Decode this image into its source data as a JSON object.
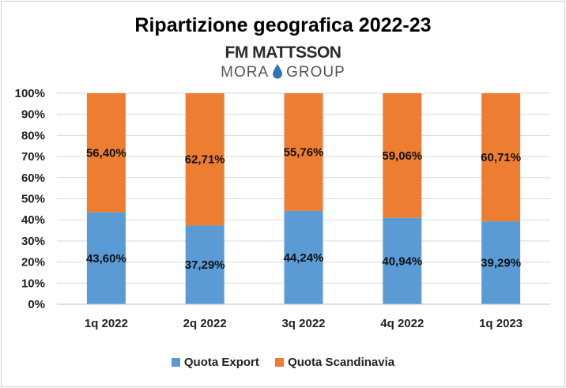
{
  "title": "Ripartizione geografica 2022-23",
  "logo": {
    "main": "FM MATTSSON",
    "sub_left": "MORA",
    "sub_right": "GROUP",
    "drop_icon": "water-drop-icon"
  },
  "colors": {
    "export": "#5b9bd5",
    "scandinavia": "#ed7d31",
    "grid": "#d9d9d9",
    "drop": "#2e75b6"
  },
  "chart_data": {
    "type": "bar",
    "stacked": true,
    "categories": [
      "1q 2022",
      "2q 2022",
      "3q 2022",
      "4q 2022",
      "1q 2023"
    ],
    "series": [
      {
        "name": "Quota Export",
        "values": [
          43.6,
          37.29,
          44.24,
          40.94,
          39.29
        ],
        "labels": [
          "43,60%",
          "37,29%",
          "44,24%",
          "40,94%",
          "39,29%"
        ]
      },
      {
        "name": "Quota Scandinavia",
        "values": [
          56.4,
          62.71,
          55.76,
          59.06,
          60.71
        ],
        "labels": [
          "56,40%",
          "62,71%",
          "55,76%",
          "59,06%",
          "60,71%"
        ]
      }
    ],
    "ylim": [
      0,
      100
    ],
    "yticks": [
      "0%",
      "10%",
      "20%",
      "30%",
      "40%",
      "50%",
      "60%",
      "70%",
      "80%",
      "90%",
      "100%"
    ],
    "grid": true,
    "legend_position": "bottom"
  }
}
